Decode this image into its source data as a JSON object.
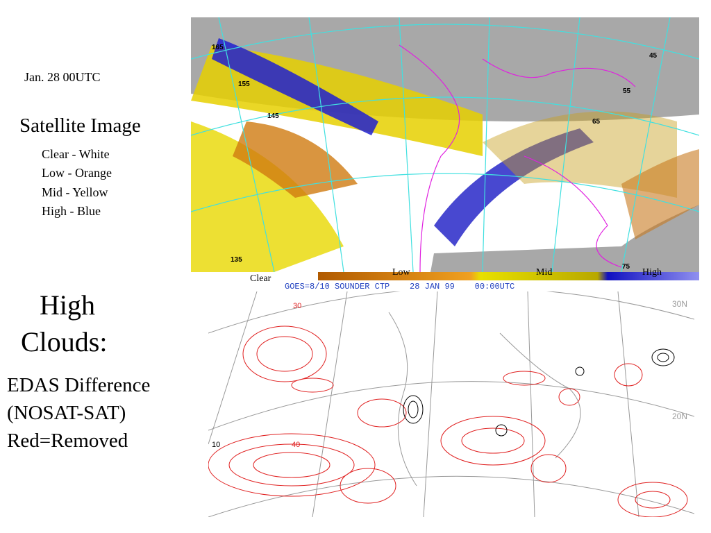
{
  "sidebar": {
    "date": "Jan. 28 00UTC",
    "heading": "Satellite Image",
    "legend": [
      "Clear - White",
      "Low - Orange",
      "Mid - Yellow",
      "High - Blue"
    ],
    "section_title": [
      "High",
      "Clouds:"
    ],
    "description": [
      "EDAS Difference",
      "(NOSAT-SAT)",
      "Red=Removed"
    ]
  },
  "satellite_image": {
    "longitude_labels": [
      "165",
      "155",
      "145",
      "135",
      "45",
      "55",
      "65",
      "75"
    ],
    "color_bar": [
      "Clear",
      "Low",
      "Mid",
      "High"
    ],
    "caption": "GOES=8/10 SOUNDER CTP    28 JAN 99    00:00UTC"
  },
  "difference_map": {
    "latitude_labels": [
      "30N",
      "20N"
    ],
    "contour_labels": [
      "30",
      "40",
      "10"
    ]
  }
}
